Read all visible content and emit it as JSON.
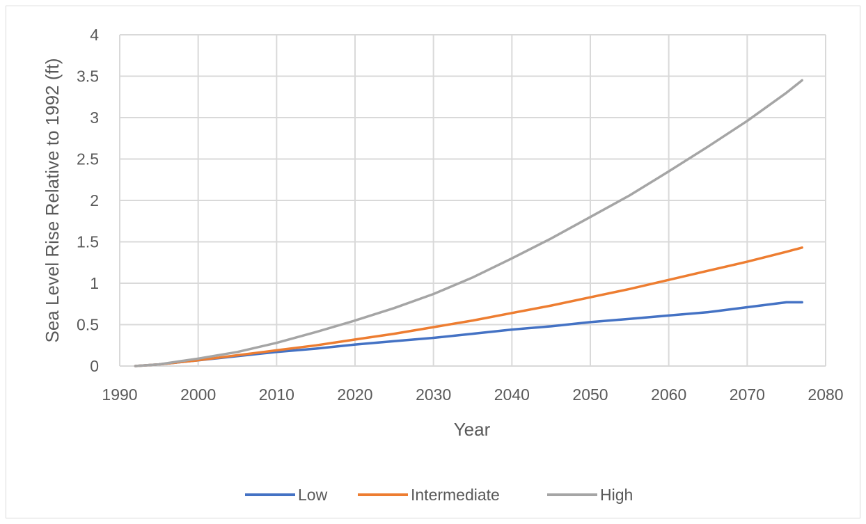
{
  "chart_data": {
    "type": "line",
    "title": "",
    "xlabel": "Year",
    "ylabel": "Sea Level Rise Relative to 1992 (ft)",
    "xlim": [
      1990,
      2080
    ],
    "ylim": [
      0,
      4
    ],
    "xticks": [
      1990,
      2000,
      2010,
      2020,
      2030,
      2040,
      2050,
      2060,
      2070,
      2080
    ],
    "yticks": [
      0,
      0.5,
      1,
      1.5,
      2,
      2.5,
      3,
      3.5,
      4
    ],
    "grid": true,
    "legend_position": "bottom",
    "series": [
      {
        "name": "Low",
        "color": "#4472c4",
        "x": [
          1992,
          1995,
          2000,
          2005,
          2010,
          2015,
          2020,
          2025,
          2030,
          2035,
          2040,
          2045,
          2050,
          2055,
          2060,
          2065,
          2070,
          2075,
          2077
        ],
        "y": [
          0,
          0.02,
          0.07,
          0.12,
          0.17,
          0.21,
          0.26,
          0.3,
          0.34,
          0.39,
          0.44,
          0.48,
          0.53,
          0.57,
          0.61,
          0.65,
          0.71,
          0.77,
          0.77
        ]
      },
      {
        "name": "Intermediate",
        "color": "#ed7d31",
        "x": [
          1992,
          1995,
          2000,
          2005,
          2010,
          2015,
          2020,
          2025,
          2030,
          2035,
          2040,
          2045,
          2050,
          2055,
          2060,
          2065,
          2070,
          2075,
          2077
        ],
        "y": [
          0,
          0.02,
          0.07,
          0.13,
          0.19,
          0.25,
          0.32,
          0.39,
          0.47,
          0.55,
          0.64,
          0.73,
          0.83,
          0.93,
          1.04,
          1.15,
          1.26,
          1.38,
          1.43
        ]
      },
      {
        "name": "High",
        "color": "#a5a5a5",
        "x": [
          1992,
          1995,
          2000,
          2005,
          2010,
          2015,
          2020,
          2025,
          2030,
          2035,
          2040,
          2045,
          2050,
          2055,
          2060,
          2065,
          2070,
          2075,
          2077
        ],
        "y": [
          0,
          0.02,
          0.09,
          0.17,
          0.28,
          0.41,
          0.55,
          0.7,
          0.87,
          1.07,
          1.3,
          1.54,
          1.8,
          2.06,
          2.35,
          2.65,
          2.96,
          3.3,
          3.45
        ]
      }
    ]
  }
}
